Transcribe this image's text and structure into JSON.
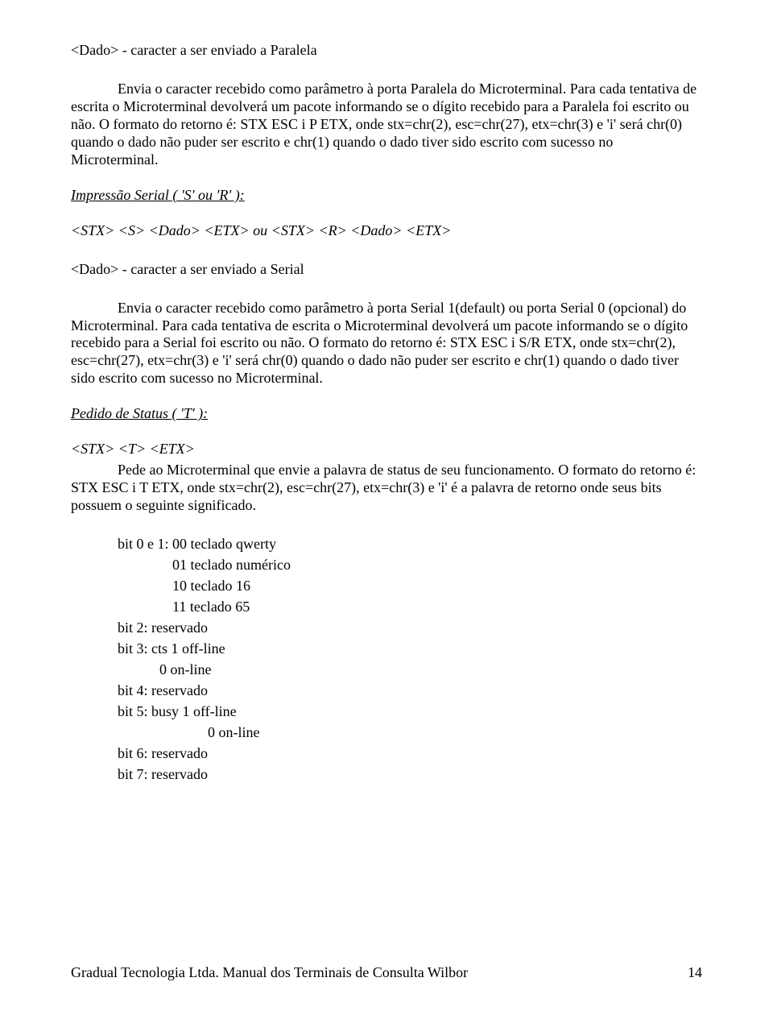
{
  "para_dado": "<Dado> - caracter a ser enviado a Paralela",
  "para_body": "Envia o caracter recebido como parâmetro à porta Paralela do Microterminal. Para cada tentativa de escrita o Microterminal devolverá um pacote informando se o dígito recebido para a Paralela foi escrito ou não. O formato do retorno é: STX ESC i P ETX, onde stx=chr(2), esc=chr(27), etx=chr(3) e 'i' será chr(0) quando o dado não puder ser escrito e chr(1) quando o dado tiver sido escrito com sucesso no Microterminal.",
  "serial_heading": "Impressão Serial ( 'S' ou 'R' ):",
  "serial_cmd": "<STX> <S> <Dado> <ETX> ou <STX> <R> <Dado> <ETX>",
  "serial_dado": "<Dado> - caracter a ser enviado a Serial",
  "serial_body": "Envia o caracter recebido como parâmetro à porta Serial 1(default) ou porta Serial 0 (opcional) do Microterminal. Para cada tentativa de escrita o Microterminal devolverá um pacote informando se o dígito recebido para a Serial foi escrito ou não. O formato do retorno é: STX ESC i S/R ETX, onde stx=chr(2), esc=chr(27), etx=chr(3) e 'i' será chr(0) quando o dado não puder ser escrito e chr(1) quando o dado tiver sido escrito com sucesso no Microterminal.",
  "status_heading": "Pedido de Status ( 'T' ):",
  "status_cmd": "<STX> <T> <ETX>",
  "status_body": "Pede ao Microterminal que envie a palavra de status de seu funcionamento. O formato do retorno é: STX ESC i T ETX, onde stx=chr(2), esc=chr(27), etx=chr(3) e 'i' é a palavra de retorno onde seus bits possuem o seguinte significado.",
  "bits": {
    "b01": "bit 0 e 1:  00 teclado qwerty",
    "b01_a": "01 teclado numérico",
    "b01_b": "10 teclado 16",
    "b01_c": "11 teclado 65",
    "b2": "bit 2: reservado",
    "b3": "bit 3: cts   1 off-line",
    "b3_a": "0 on-line",
    "b4": "bit 4: reservado",
    "b5": "bit 5: busy 1 off-line",
    "b5_a": "0 on-line",
    "b6": "bit 6: reservado",
    "b7": "bit 7: reservado"
  },
  "footer_left": "Gradual Tecnologia Ltda.   Manual dos Terminais de Consulta Wilbor",
  "footer_page": "14"
}
